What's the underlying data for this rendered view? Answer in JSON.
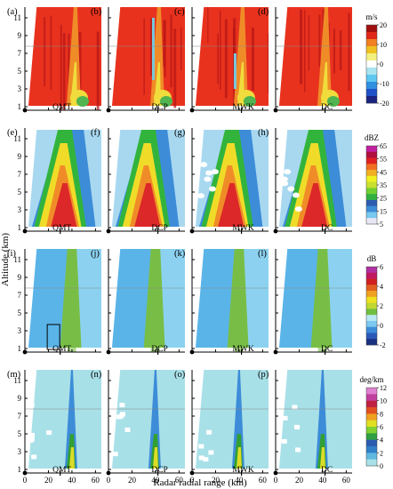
{
  "figure": {
    "y_axis_label": "Altitude (km)",
    "x_axis_label": "Radar radial range (km)",
    "y_ticks": [
      "1",
      "3",
      "5",
      "7",
      "9",
      "11"
    ],
    "x_ticks": [
      "0",
      "20",
      "40",
      "60"
    ]
  },
  "rows": [
    {
      "quantity": "velocity",
      "unit": "m/s",
      "colorbar_ticks": [
        "20",
        "10",
        "0",
        "-10",
        "-20"
      ],
      "colorbar_colors": [
        "#1a237e",
        "#1e50c8",
        "#2f8fe0",
        "#5cc8f0",
        "#a8e4f0",
        "#ffffff",
        "#f4f080",
        "#f0c020",
        "#f08020",
        "#e02818",
        "#a01010"
      ]
    },
    {
      "quantity": "reflectivity",
      "unit": "dBZ",
      "colorbar_ticks": [
        "65",
        "55",
        "45",
        "35",
        "25",
        "15",
        "5"
      ],
      "colorbar_colors": [
        "#e8e8f4",
        "#78c8f0",
        "#3c8cd8",
        "#2c5cb0",
        "#30b040",
        "#70d030",
        "#c8e030",
        "#f0f020",
        "#f0b020",
        "#f07020",
        "#e02020",
        "#b01040",
        "#c020a0"
      ]
    },
    {
      "quantity": "differential reflectivity",
      "unit": "dB",
      "colorbar_ticks": [
        "6",
        "4",
        "2",
        "0",
        "-2"
      ],
      "colorbar_colors": [
        "#1a3080",
        "#2a58b8",
        "#3c8cd8",
        "#7cc8f0",
        "#b8e8f0",
        "#70c040",
        "#c0d830",
        "#f0e020",
        "#f0a020",
        "#e06020",
        "#d02020",
        "#c01860",
        "#b030a0"
      ]
    },
    {
      "quantity": "specific differential phase",
      "unit": "deg/km",
      "colorbar_ticks": [
        "12",
        "10",
        "8",
        "6",
        "4",
        "2",
        "0"
      ],
      "colorbar_colors": [
        "#a8e0e8",
        "#60b8e0",
        "#3080c8",
        "#2c5cb0",
        "#30a040",
        "#80d030",
        "#e0e020",
        "#f0a020",
        "#e05020",
        "#c02040",
        "#c040a0",
        "#e080d0"
      ]
    }
  ],
  "columns": [
    "QMT",
    "DCP",
    "MWK",
    "DC"
  ],
  "panels": [
    {
      "letter": "(a)"
    },
    {
      "letter": "(b)"
    },
    {
      "letter": "(c)"
    },
    {
      "letter": "(d)"
    },
    {
      "letter": "(e)"
    },
    {
      "letter": "(f)"
    },
    {
      "letter": "(g)"
    },
    {
      "letter": "(h)"
    },
    {
      "letter": "(i)"
    },
    {
      "letter": "(j)"
    },
    {
      "letter": "(k)"
    },
    {
      "letter": "(l)"
    },
    {
      "letter": "(m)"
    },
    {
      "letter": "(n)"
    },
    {
      "letter": "(o)"
    },
    {
      "letter": "(p)"
    }
  ],
  "colors": {
    "vel_main": "#e8321e",
    "vel_dark": "#b41414",
    "vel_orange": "#f08c28",
    "vel_yellow": "#f0dc3c",
    "vel_green": "#50b450",
    "vel_cyan": "#78c8dc",
    "z_light": "#a8d8f0",
    "z_blue": "#3c8cd8",
    "z_green": "#32b43c",
    "z_yellow": "#f0dc28",
    "z_orange": "#f08c28",
    "z_red": "#dc2828",
    "z_white": "#ffffff",
    "zdr_blue": "#5ab4e8",
    "zdr_light": "#8cd2f0",
    "zdr_green": "#78be46",
    "zdr_yellow": "#c8c83c",
    "kdp_bg": "#a8e0e8",
    "kdp_blue": "#3c8cd8",
    "kdp_green": "#32a032",
    "kdp_yellow": "#dcdc28"
  }
}
